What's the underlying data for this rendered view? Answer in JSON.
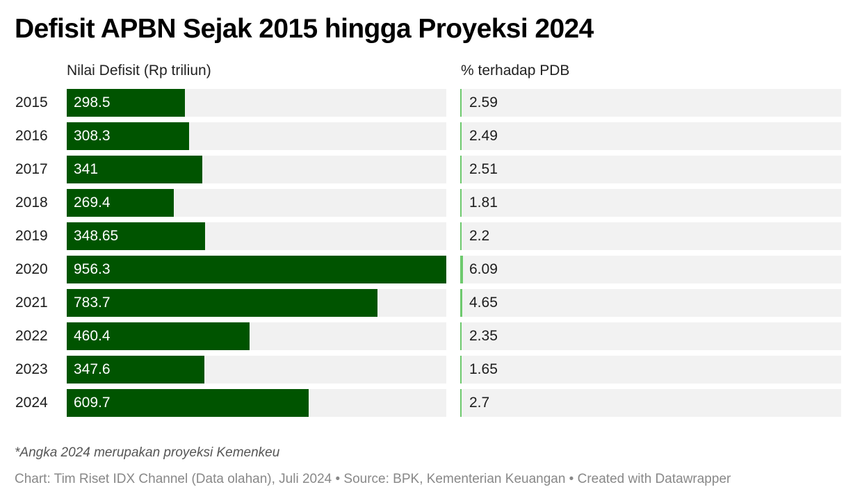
{
  "title": "Defisit APBN Sejak 2015 hingga Proyeksi 2024",
  "columns": {
    "left": "Nilai Defisit (Rp triliun)",
    "right": "% terhadap PDB"
  },
  "colors": {
    "bar_primary": "#005400",
    "bar_secondary": "#6dc96d",
    "track": "#f1f1f1"
  },
  "rows": [
    {
      "year": "2015",
      "deficit": "298.5",
      "pdb": "2.59"
    },
    {
      "year": "2016",
      "deficit": "308.3",
      "pdb": "2.49"
    },
    {
      "year": "2017",
      "deficit": "341",
      "pdb": "2.51"
    },
    {
      "year": "2018",
      "deficit": "269.4",
      "pdb": "1.81"
    },
    {
      "year": "2019",
      "deficit": "348.65",
      "pdb": "2.2"
    },
    {
      "year": "2020",
      "deficit": "956.3",
      "pdb": "6.09"
    },
    {
      "year": "2021",
      "deficit": "783.7",
      "pdb": "4.65"
    },
    {
      "year": "2022",
      "deficit": "460.4",
      "pdb": "2.35"
    },
    {
      "year": "2023",
      "deficit": "347.6",
      "pdb": "1.65"
    },
    {
      "year": "2024",
      "deficit": "609.7",
      "pdb": "2.7"
    }
  ],
  "footer": {
    "note": "*Angka 2024 merupakan proyeksi Kemenkeu",
    "credit": "Chart: Tim Riset IDX Channel (Data olahan), Juli 2024 • Source: BPK, Kementerian Keuangan • Created with Datawrapper"
  },
  "chart_data": {
    "type": "bar",
    "title": "Defisit APBN Sejak 2015 hingga Proyeksi 2024",
    "categories": [
      "2015",
      "2016",
      "2017",
      "2018",
      "2019",
      "2020",
      "2021",
      "2022",
      "2023",
      "2024"
    ],
    "series": [
      {
        "name": "Nilai Defisit (Rp triliun)",
        "values": [
          298.5,
          308.3,
          341,
          269.4,
          348.65,
          956.3,
          783.7,
          460.4,
          347.6,
          609.7
        ]
      },
      {
        "name": "% terhadap PDB",
        "values": [
          2.59,
          2.49,
          2.51,
          1.81,
          2.2,
          6.09,
          4.65,
          2.35,
          1.65,
          2.7
        ]
      }
    ],
    "orientation": "horizontal",
    "xlabel": "",
    "ylabel": "",
    "grid": false,
    "legend": "column headers",
    "annotations": [
      "*Angka 2024 merupakan proyeksi Kemenkeu"
    ]
  }
}
